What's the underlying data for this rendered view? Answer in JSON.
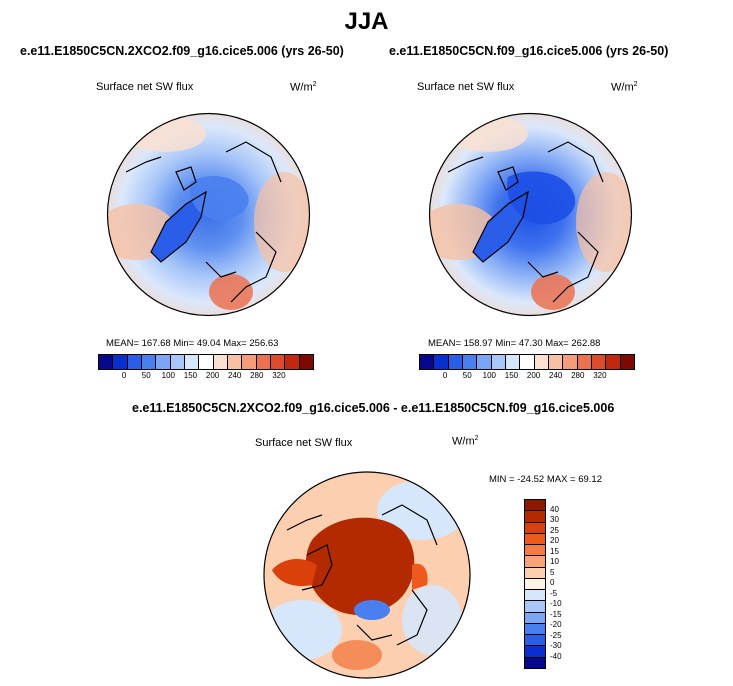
{
  "title": "JJA",
  "panels": [
    {
      "case": "e.e11.E1850C5CN.2XCO2.f09_g16.cice5.006 (yrs 26-50)",
      "variable": "Surface net SW flux",
      "units": "W/m",
      "units_sup": "2",
      "stats": "MEAN= 167.68  Min=  49.04  Max= 256.63",
      "colorbar_ticks": [
        "0",
        "50",
        "100",
        "150",
        "200",
        "240",
        "280",
        "320"
      ]
    },
    {
      "case": "e.e11.E1850C5CN.f09_g16.cice5.006 (yrs 26-50)",
      "variable": "Surface net SW flux",
      "units": "W/m",
      "units_sup": "2",
      "stats": "MEAN= 158.97  Min=  47.30  Max= 262.88",
      "colorbar_ticks": [
        "0",
        "50",
        "100",
        "150",
        "200",
        "240",
        "280",
        "320"
      ]
    }
  ],
  "diff": {
    "case": "e.e11.E1850C5CN.2XCO2.f09_g16.cice5.006 - e.e11.E1850C5CN.f09_g16.cice5.006",
    "variable": "Surface net SW flux",
    "units": "W/m",
    "units_sup": "2",
    "stats": "MIN = -24.52 MAX =  69.12",
    "colorbar_ticks": [
      "40",
      "30",
      "25",
      "20",
      "15",
      "10",
      "5",
      "0",
      "-5",
      "-10",
      "-15",
      "-20",
      "-25",
      "-30",
      "-40"
    ]
  },
  "colors": {
    "abs_scale": [
      "#08088f",
      "#0a2fd0",
      "#2a5ee8",
      "#4a7ff0",
      "#7aa6f5",
      "#a8c6f8",
      "#d6e6fb",
      "#ffffff",
      "#fbe0cf",
      "#f8c1a3",
      "#f59c78",
      "#ec7150",
      "#dd4a2c",
      "#c02810",
      "#7d0a00"
    ],
    "diff_scale": [
      "#8a1a00",
      "#b32a00",
      "#d9400a",
      "#ee5a1e",
      "#f57a45",
      "#f8a27a",
      "#fbcfb0",
      "#fff3e8",
      "#d6e6fb",
      "#a8c6f8",
      "#7aa6f5",
      "#4a7ff0",
      "#2a5ee8",
      "#0a2fd0",
      "#08088f"
    ]
  },
  "chart_data": [
    {
      "type": "heatmap",
      "projection": "north-polar-stereographic",
      "title": "e.e11.E1850C5CN.2XCO2.f09_g16.cice5.006 (yrs 26-50)",
      "variable": "Surface net SW flux",
      "units": "W/m2",
      "mean": 167.68,
      "min": 49.04,
      "max": 256.63,
      "levels": [
        0,
        50,
        100,
        150,
        200,
        240,
        280,
        320
      ]
    },
    {
      "type": "heatmap",
      "projection": "north-polar-stereographic",
      "title": "e.e11.E1850C5CN.f09_g16.cice5.006 (yrs 26-50)",
      "variable": "Surface net SW flux",
      "units": "W/m2",
      "mean": 158.97,
      "min": 47.3,
      "max": 262.88,
      "levels": [
        0,
        50,
        100,
        150,
        200,
        240,
        280,
        320
      ]
    },
    {
      "type": "heatmap",
      "projection": "north-polar-stereographic",
      "title": "e.e11.E1850C5CN.2XCO2.f09_g16.cice5.006 - e.e11.E1850C5CN.f09_g16.cice5.006",
      "variable": "Surface net SW flux",
      "units": "W/m2",
      "min": -24.52,
      "max": 69.12,
      "levels": [
        -40,
        -30,
        -25,
        -20,
        -15,
        -10,
        -5,
        0,
        5,
        10,
        15,
        20,
        25,
        30,
        40
      ]
    }
  ]
}
